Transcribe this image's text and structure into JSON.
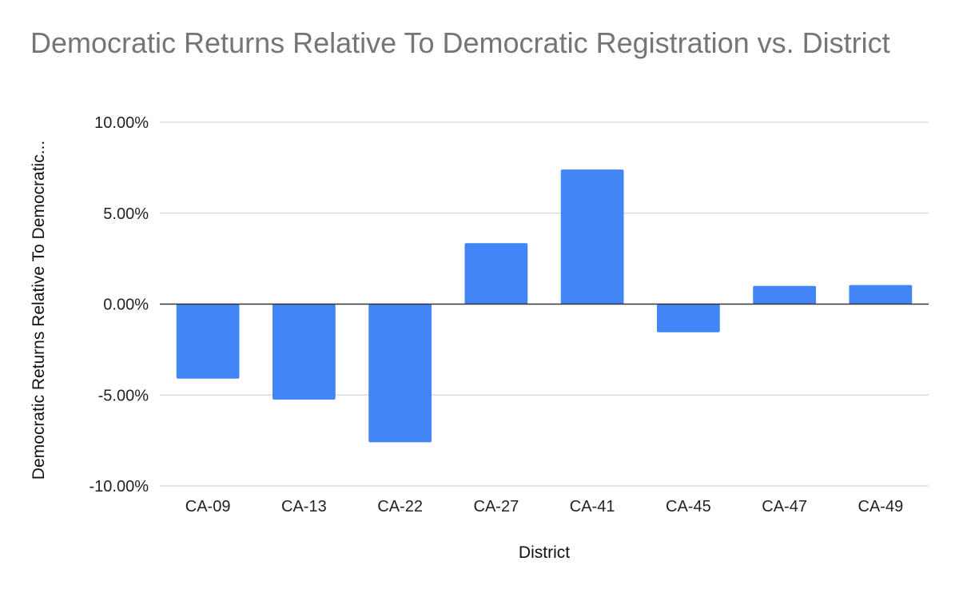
{
  "chart_data": {
    "type": "bar",
    "title": "Democratic Returns Relative To Democratic Registration vs. District",
    "xlabel": "District",
    "ylabel": "Democratic Returns Relative To Democratic...",
    "categories": [
      "CA-09",
      "CA-13",
      "CA-22",
      "CA-27",
      "CA-41",
      "CA-45",
      "CA-47",
      "CA-49"
    ],
    "values": [
      -4.1,
      -5.25,
      -7.6,
      3.35,
      7.4,
      -1.55,
      1.0,
      1.05
    ],
    "unit": "%",
    "ylim": [
      -10,
      10
    ],
    "yticks": [
      10,
      5,
      0,
      -5,
      -10
    ],
    "ytick_labels": [
      "10.00%",
      "5.00%",
      "0.00%",
      "-5.00%",
      "-10.00%"
    ],
    "grid": true,
    "bar_color": "#4285F4",
    "gridline_color": "#CCCCCC",
    "zero_line_color": "#333333"
  }
}
